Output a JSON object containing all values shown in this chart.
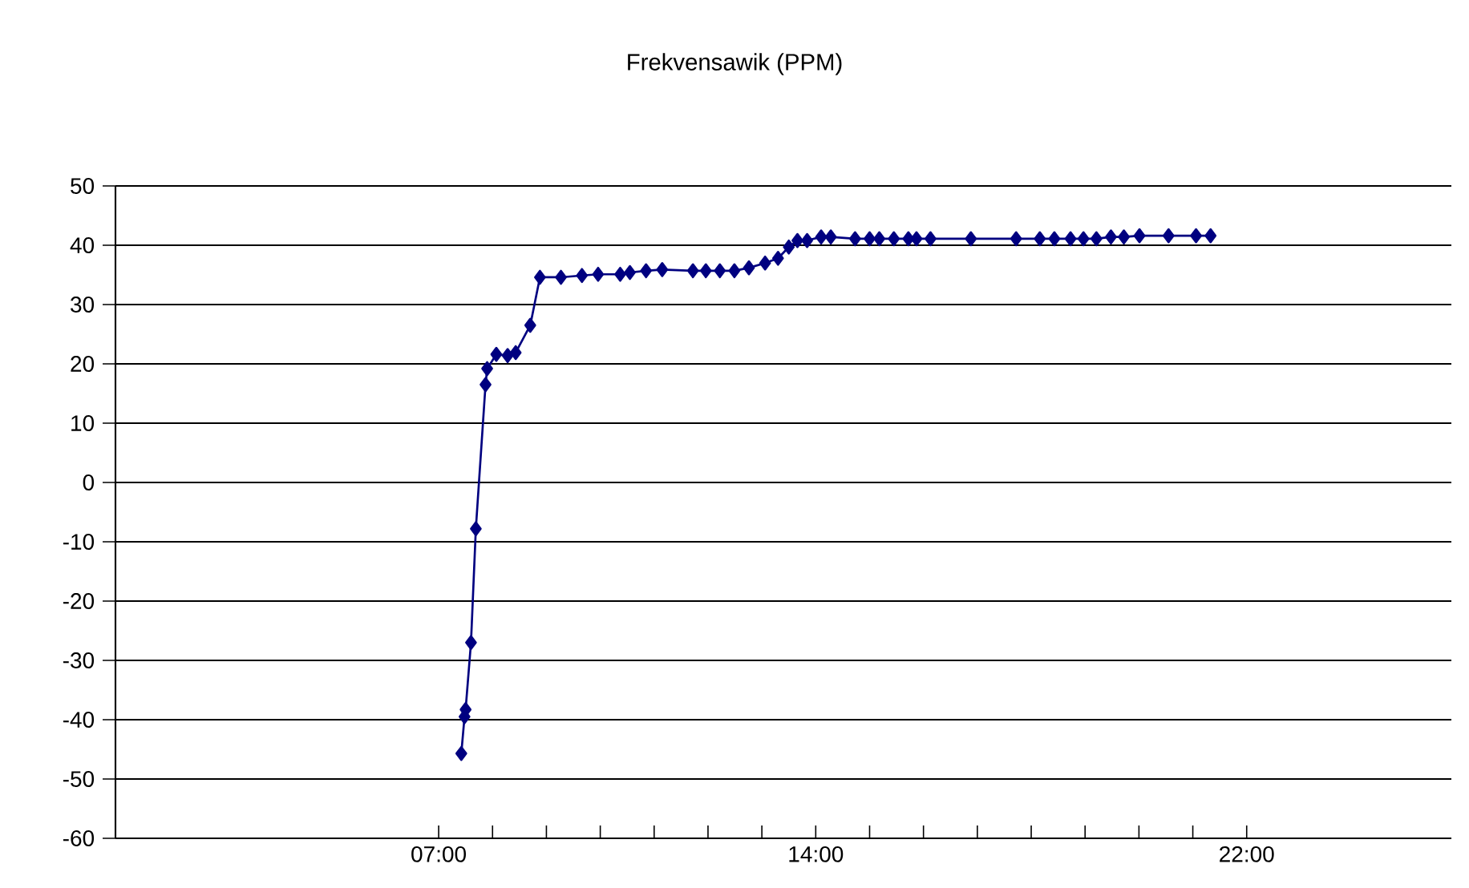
{
  "chart_data": {
    "type": "line",
    "title": "Frekvensawik (PPM)",
    "x": [
      7.42,
      7.48,
      7.5,
      7.6,
      7.69,
      7.87,
      7.9,
      8.07,
      8.28,
      8.43,
      8.7,
      8.88,
      9.27,
      9.66,
      9.96,
      10.37,
      10.55,
      10.85,
      11.15,
      11.72,
      11.96,
      12.22,
      12.49,
      12.76,
      13.06,
      13.3,
      13.5,
      13.66,
      13.84,
      14.1,
      14.28,
      14.73,
      15.0,
      15.18,
      15.45,
      15.72,
      15.87,
      16.13,
      16.88,
      17.72,
      18.16,
      18.43,
      18.73,
      18.97,
      19.21,
      19.48,
      19.72,
      20.01,
      20.55,
      21.06,
      21.33
    ],
    "series": [
      {
        "color": "#000080",
        "values": [
          -45.7,
          -39.5,
          -38.3,
          -27,
          -7.8,
          16.5,
          19.2,
          21.6,
          21.4,
          21.9,
          26.5,
          34.6,
          34.6,
          34.9,
          35.1,
          35.1,
          35.4,
          35.7,
          35.9,
          35.7,
          35.7,
          35.7,
          35.7,
          36.2,
          37.0,
          37.8,
          39.7,
          40.8,
          40.8,
          41.4,
          41.4,
          41.1,
          41.1,
          41.1,
          41.1,
          41.1,
          41.1,
          41.1,
          41.1,
          41.1,
          41.1,
          41.1,
          41.1,
          41.1,
          41.1,
          41.4,
          41.4,
          41.6,
          41.6,
          41.6,
          41.6
        ]
      }
    ],
    "xlim": [
      1,
      25.8
    ],
    "xticks": [
      {
        "value": 7,
        "label": "07:00"
      },
      {
        "value": 8,
        "label": null
      },
      {
        "value": 9,
        "label": null
      },
      {
        "value": 10,
        "label": null
      },
      {
        "value": 11,
        "label": null
      },
      {
        "value": 12,
        "label": null
      },
      {
        "value": 13,
        "label": null
      },
      {
        "value": 14,
        "label": "14:00"
      },
      {
        "value": 15,
        "label": null
      },
      {
        "value": 16,
        "label": null
      },
      {
        "value": 17,
        "label": null
      },
      {
        "value": 18,
        "label": null
      },
      {
        "value": 19,
        "label": null
      },
      {
        "value": 20,
        "label": null
      },
      {
        "value": 21,
        "label": null
      },
      {
        "value": 22,
        "label": "22:00"
      }
    ],
    "ylim": [
      -60,
      50
    ],
    "yticks": [
      -60,
      -50,
      -40,
      -30,
      -20,
      -10,
      0,
      10,
      20,
      30,
      40,
      50
    ],
    "grid": "y",
    "marker": "diamond",
    "line_style": "solid"
  }
}
